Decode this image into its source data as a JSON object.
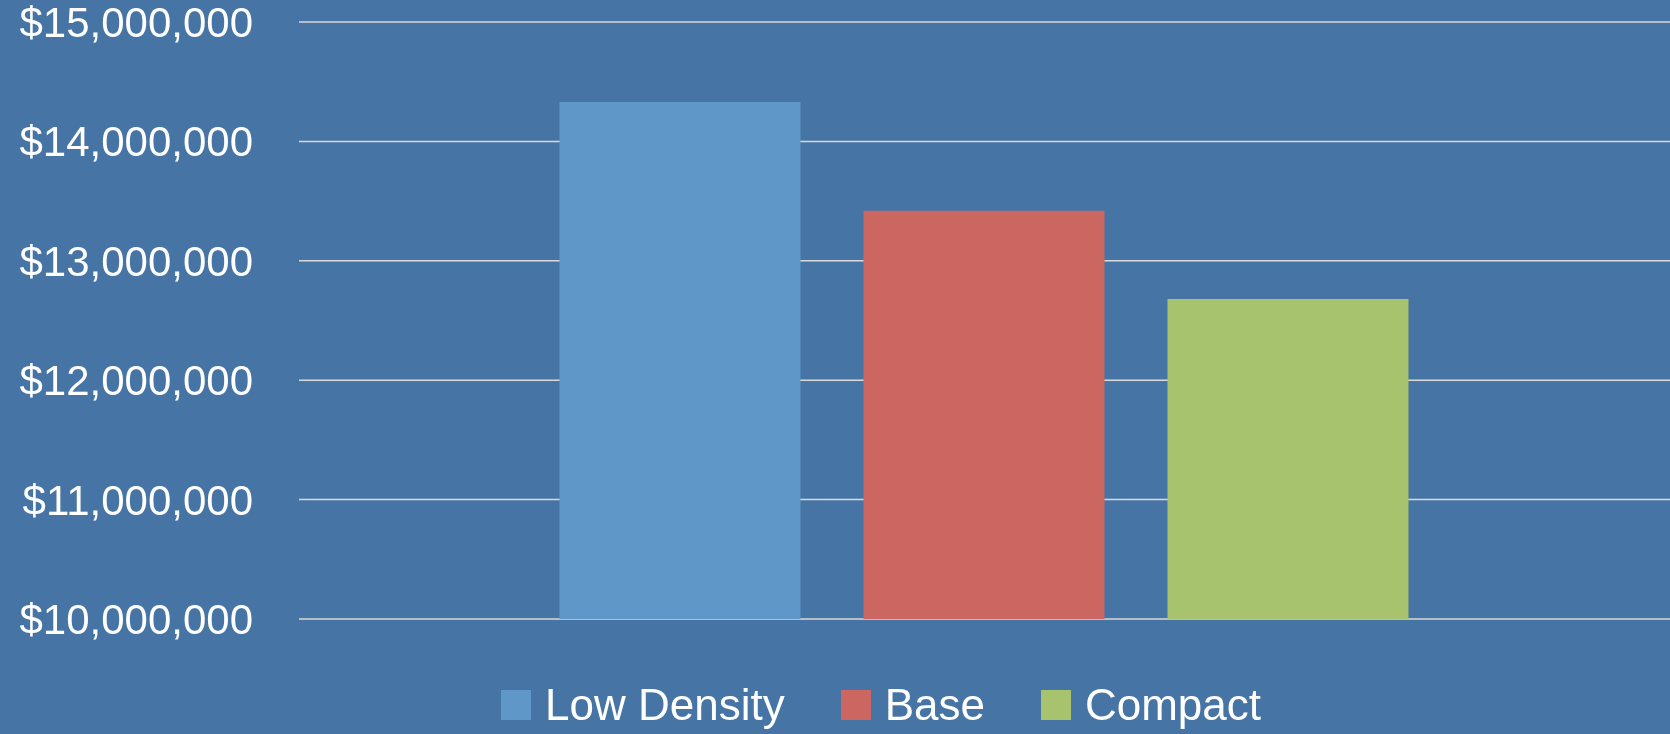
{
  "chart_data": {
    "type": "bar",
    "categories": [
      null
    ],
    "series": [
      {
        "name": "Low Density",
        "color": "#6097c9",
        "values": [
          14330000
        ]
      },
      {
        "name": "Base",
        "color": "#cc6660",
        "values": [
          13420000
        ]
      },
      {
        "name": "Compact",
        "color": "#a8c36d",
        "values": [
          12680000
        ]
      }
    ],
    "ylim": [
      10000000,
      15000000
    ],
    "yticks": [
      {
        "value": 10000000,
        "label": "$10,000,000"
      },
      {
        "value": 11000000,
        "label": "$11,000,000"
      },
      {
        "value": 12000000,
        "label": "$12,000,000"
      },
      {
        "value": 13000000,
        "label": "$13,000,000"
      },
      {
        "value": 14000000,
        "label": "$14,000,000"
      },
      {
        "value": 15000000,
        "label": "$15,000,000"
      }
    ],
    "grid": "y",
    "legend": "bottom"
  }
}
